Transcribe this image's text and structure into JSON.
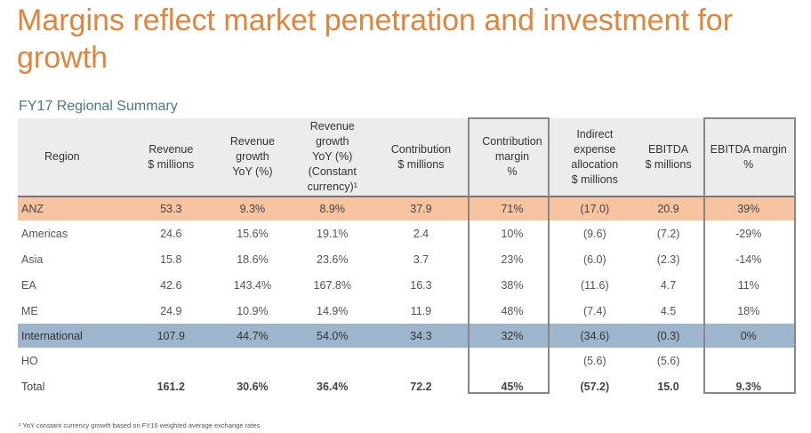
{
  "title": "Margins reflect market penetration and investment for growth",
  "subtitle": "FY17 Regional Summary",
  "headers": [
    "Region",
    "Revenue\n$ millions",
    "Revenue\ngrowth\nYoY (%)",
    "Revenue growth\nYoY (%)\n(Constant\ncurrency)¹",
    "Contribution\n$ millions",
    "Contribution\nmargin\n%",
    "Indirect\nexpense\nallocation\n$ millions",
    "EBITDA\n$ millions",
    "EBITDA margin\n%"
  ],
  "rows": [
    [
      "ANZ",
      "53.3",
      "9.3%",
      "8.9%",
      "37.9",
      "71%",
      "(17.0)",
      "20.9",
      "39%"
    ],
    [
      "Americas",
      "24.6",
      "15.6%",
      "19.1%",
      "2.4",
      "10%",
      "(9.6)",
      "(7.2)",
      "-29%"
    ],
    [
      "Asia",
      "15.8",
      "18.6%",
      "23.6%",
      "3.7",
      "23%",
      "(6.0)",
      "(2.3)",
      "-14%"
    ],
    [
      "EA",
      "42.6",
      "143.4%",
      "167.8%",
      "16.3",
      "38%",
      "(11.6)",
      "4.7",
      "11%"
    ],
    [
      "ME",
      "24.9",
      "10.9%",
      "14.9%",
      "11.9",
      "48%",
      "(7.4)",
      "4.5",
      "18%"
    ],
    [
      "International",
      "107.9",
      "44.7%",
      "54.0%",
      "34.3",
      "32%",
      "(34.6)",
      "(0.3)",
      "0%"
    ],
    [
      "HO",
      "",
      "",
      "",
      "",
      "",
      "(5.6)",
      "(5.6)",
      ""
    ],
    [
      "Total",
      "161.2",
      "30.6%",
      "36.4%",
      "72.2",
      "45%",
      "(57.2)",
      "15.0",
      "9.3%"
    ]
  ],
  "footnote": "¹ YoY constant currency growth based on FY16 weighted average exchange rates",
  "colors": {
    "anz_row": "#f7c4a1",
    "international_row": "#9db5cd",
    "title": "#e2843a"
  }
}
